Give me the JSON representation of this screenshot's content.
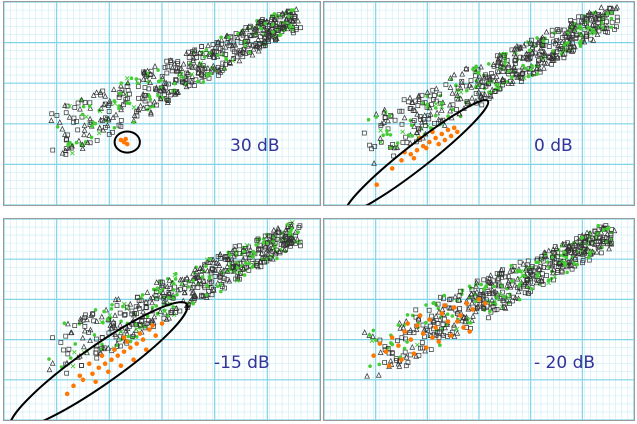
{
  "chart_data": [
    {
      "type": "scatter",
      "snr_label": "30 dB",
      "highlight_series": "orange",
      "highlight_points": [
        [
          0.38,
          0.31
        ],
        [
          0.39,
          0.3
        ],
        [
          0.37,
          0.32
        ],
        [
          0.385,
          0.325
        ]
      ],
      "ellipse": {
        "cx": 0.39,
        "cy": 0.31,
        "rx": 0.04,
        "ry": 0.052,
        "angle": 0
      },
      "grid": true
    },
    {
      "type": "scatter",
      "snr_label": "0 dB",
      "highlight_series": "orange",
      "highlight_points": [
        [
          0.17,
          0.1
        ],
        [
          0.22,
          0.18
        ],
        [
          0.25,
          0.22
        ],
        [
          0.28,
          0.25
        ],
        [
          0.3,
          0.27
        ],
        [
          0.32,
          0.29
        ],
        [
          0.34,
          0.31
        ],
        [
          0.36,
          0.33
        ],
        [
          0.38,
          0.35
        ],
        [
          0.4,
          0.37
        ],
        [
          0.29,
          0.23
        ],
        [
          0.33,
          0.28
        ],
        [
          0.37,
          0.3
        ],
        [
          0.41,
          0.34
        ],
        [
          0.43,
          0.36
        ],
        [
          0.26,
          0.26
        ],
        [
          0.31,
          0.33
        ],
        [
          0.35,
          0.36
        ],
        [
          0.39,
          0.32
        ],
        [
          0.42,
          0.38
        ]
      ],
      "ellipse": {
        "cx": 0.3,
        "cy": 0.24,
        "rx": 0.29,
        "ry": 0.06,
        "angle": -38
      },
      "grid": true
    },
    {
      "type": "scatter",
      "snr_label": "-15 dB",
      "highlight_series": "orange",
      "highlight_points": [
        [
          0.2,
          0.13
        ],
        [
          0.22,
          0.17
        ],
        [
          0.25,
          0.2
        ],
        [
          0.28,
          0.23
        ],
        [
          0.3,
          0.26
        ],
        [
          0.32,
          0.28
        ],
        [
          0.34,
          0.3
        ],
        [
          0.36,
          0.32
        ],
        [
          0.38,
          0.34
        ],
        [
          0.4,
          0.36
        ],
        [
          0.42,
          0.38
        ],
        [
          0.44,
          0.4
        ],
        [
          0.27,
          0.28
        ],
        [
          0.31,
          0.32
        ],
        [
          0.35,
          0.35
        ],
        [
          0.39,
          0.39
        ],
        [
          0.43,
          0.43
        ],
        [
          0.46,
          0.45
        ],
        [
          0.33,
          0.24
        ],
        [
          0.37,
          0.27
        ],
        [
          0.41,
          0.3
        ],
        [
          0.45,
          0.35
        ],
        [
          0.48,
          0.42
        ],
        [
          0.24,
          0.22
        ],
        [
          0.29,
          0.19
        ],
        [
          0.38,
          0.41
        ],
        [
          0.47,
          0.47
        ],
        [
          0.5,
          0.48
        ]
      ],
      "ellipse": {
        "cx": 0.3,
        "cy": 0.27,
        "rx": 0.34,
        "ry": 0.095,
        "angle": -35
      },
      "grid": true
    },
    {
      "type": "scatter",
      "snr_label": "- 20 dB",
      "highlight_series": "orange",
      "highlight_points": [
        [
          0.16,
          0.32
        ],
        [
          0.18,
          0.38
        ],
        [
          0.2,
          0.34
        ],
        [
          0.22,
          0.41
        ],
        [
          0.24,
          0.37
        ],
        [
          0.26,
          0.44
        ],
        [
          0.28,
          0.4
        ],
        [
          0.3,
          0.47
        ],
        [
          0.32,
          0.43
        ],
        [
          0.34,
          0.5
        ],
        [
          0.36,
          0.46
        ],
        [
          0.38,
          0.53
        ],
        [
          0.4,
          0.49
        ],
        [
          0.42,
          0.56
        ],
        [
          0.44,
          0.52
        ],
        [
          0.46,
          0.58
        ],
        [
          0.48,
          0.55
        ],
        [
          0.5,
          0.6
        ],
        [
          0.25,
          0.3
        ],
        [
          0.29,
          0.33
        ],
        [
          0.33,
          0.36
        ],
        [
          0.37,
          0.39
        ],
        [
          0.41,
          0.42
        ],
        [
          0.45,
          0.46
        ],
        [
          0.21,
          0.27
        ],
        [
          0.31,
          0.52
        ],
        [
          0.39,
          0.57
        ],
        [
          0.27,
          0.48
        ],
        [
          0.35,
          0.41
        ],
        [
          0.43,
          0.49
        ],
        [
          0.47,
          0.44
        ],
        [
          0.52,
          0.58
        ]
      ],
      "ellipse": null,
      "grid": true
    }
  ],
  "colors": {
    "grid_major": "#7fd4e6",
    "grid_minor": "#c9eef5",
    "black_marker": "#333333",
    "green_marker": "#44cc33",
    "orange_marker": "#ff7700",
    "label_color": "#333399"
  }
}
